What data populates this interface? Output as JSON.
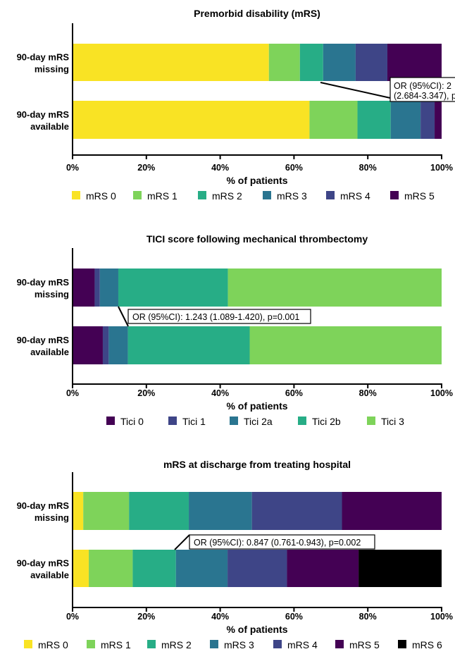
{
  "chart_data": [
    {
      "type": "bar",
      "orientation": "horizontal",
      "stacked": true,
      "title": "Premorbid disability (mRS)",
      "xlabel": "% of patients",
      "xlim": [
        0,
        100
      ],
      "ticks": [
        "0%",
        "20%",
        "40%",
        "60%",
        "80%",
        "100%"
      ],
      "categories": [
        [
          "90-day mRS",
          "missing"
        ],
        [
          "90-day mRS",
          "available"
        ]
      ],
      "series": [
        {
          "name": "mRS 0",
          "color": "#F9E324",
          "values": [
            53.2,
            64.2
          ]
        },
        {
          "name": "mRS 1",
          "color": "#7ED35A",
          "values": [
            8.4,
            13.0
          ]
        },
        {
          "name": "mRS 2",
          "color": "#27AD86",
          "values": [
            6.3,
            9.0
          ]
        },
        {
          "name": "mRS 3",
          "color": "#2A7590",
          "values": [
            8.8,
            8.1
          ]
        },
        {
          "name": "mRS 4",
          "color": "#3E4587",
          "values": [
            8.6,
            3.8
          ]
        },
        {
          "name": "mRS 5",
          "color": "#440154",
          "values": [
            14.7,
            1.9
          ]
        }
      ],
      "annotation": {
        "lines": [
          "OR (95%CI): 2",
          "(2.684-3.347), p"
        ],
        "clipped": true
      },
      "legend_position": "bottom"
    },
    {
      "type": "bar",
      "orientation": "horizontal",
      "stacked": true,
      "title": "TICI score following mechanical thrombectomy",
      "xlabel": "% of patients",
      "xlim": [
        0,
        100
      ],
      "ticks": [
        "0%",
        "20%",
        "40%",
        "60%",
        "80%",
        "100%"
      ],
      "categories": [
        [
          "90-day mRS",
          "missing"
        ],
        [
          "90-day mRS",
          "available"
        ]
      ],
      "series": [
        {
          "name": "Tici 0",
          "color": "#440154",
          "values": [
            6.0,
            8.2
          ]
        },
        {
          "name": "Tici 1",
          "color": "#3E4587",
          "values": [
            1.4,
            1.6
          ]
        },
        {
          "name": "Tici 2a",
          "color": "#2A7590",
          "values": [
            5.0,
            5.2
          ]
        },
        {
          "name": "Tici 2b",
          "color": "#27AD86",
          "values": [
            29.7,
            33.0
          ]
        },
        {
          "name": "Tici 3",
          "color": "#7ED35A",
          "values": [
            57.9,
            52.0
          ]
        }
      ],
      "annotation": {
        "lines": [
          "OR (95%CI): 1.243 (1.089-1.420), p=0.001"
        ],
        "clipped": false
      },
      "legend_position": "bottom"
    },
    {
      "type": "bar",
      "orientation": "horizontal",
      "stacked": true,
      "title": "mRS at discharge from treating hospital",
      "xlabel": "% of patients",
      "xlim": [
        0,
        100
      ],
      "ticks": [
        "0%",
        "20%",
        "40%",
        "60%",
        "80%",
        "100%"
      ],
      "categories": [
        [
          "90-day mRS",
          "missing"
        ],
        [
          "90-day mRS",
          "available"
        ]
      ],
      "series": [
        {
          "name": "mRS 0",
          "color": "#F9E324",
          "values": [
            2.9,
            4.4
          ]
        },
        {
          "name": "mRS 1",
          "color": "#7ED35A",
          "values": [
            12.4,
            11.9
          ]
        },
        {
          "name": "mRS 2",
          "color": "#27AD86",
          "values": [
            16.2,
            11.7
          ]
        },
        {
          "name": "mRS 3",
          "color": "#2A7590",
          "values": [
            17.1,
            14.0
          ]
        },
        {
          "name": "mRS 4",
          "color": "#3E4587",
          "values": [
            24.4,
            16.1
          ]
        },
        {
          "name": "mRS 5",
          "color": "#440154",
          "values": [
            27.0,
            19.4
          ]
        },
        {
          "name": "mRS 6",
          "color": "#000000",
          "values": [
            0,
            22.5
          ]
        }
      ],
      "annotation": {
        "lines": [
          "OR (95%CI): 0.847 (0.761-0.943), p=0.002"
        ],
        "clipped": false
      },
      "legend_position": "bottom"
    }
  ]
}
